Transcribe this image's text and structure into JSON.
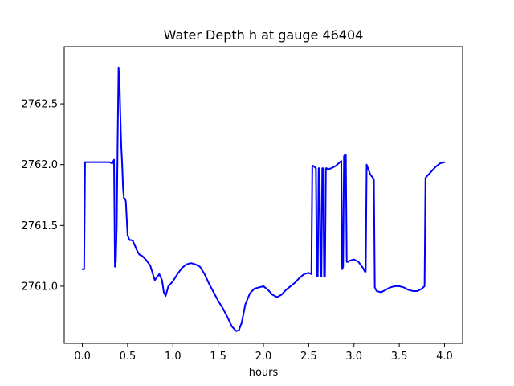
{
  "chart_data": {
    "type": "line",
    "title": "Water Depth h at gauge 46404",
    "xlabel": "hours",
    "ylabel": "",
    "xlim": [
      -0.2,
      4.2
    ],
    "ylim": [
      2760.53,
      2762.97
    ],
    "xticks": [
      0.0,
      0.5,
      1.0,
      1.5,
      2.0,
      2.5,
      3.0,
      3.5,
      4.0
    ],
    "xtick_labels": [
      "0.0",
      "0.5",
      "1.0",
      "1.5",
      "2.0",
      "2.5",
      "3.0",
      "3.5",
      "4.0"
    ],
    "yticks": [
      2761.0,
      2761.5,
      2762.0,
      2762.5
    ],
    "ytick_labels": [
      "2761.0",
      "2761.5",
      "2762.0",
      "2762.5"
    ],
    "grid": false,
    "line_color": "#0000ff",
    "series": [
      {
        "x": [
          0.0,
          0.02,
          0.03,
          0.1,
          0.2,
          0.3,
          0.33,
          0.35,
          0.36,
          0.37,
          0.38,
          0.39,
          0.4,
          0.41,
          0.42,
          0.43,
          0.44,
          0.45,
          0.46,
          0.47,
          0.48,
          0.5,
          0.52,
          0.53,
          0.54,
          0.56,
          0.6,
          0.63,
          0.66,
          0.7,
          0.75,
          0.8,
          0.82,
          0.85,
          0.88,
          0.9,
          0.92,
          0.95,
          1.0,
          1.05,
          1.1,
          1.15,
          1.2,
          1.25,
          1.3,
          1.35,
          1.4,
          1.45,
          1.5,
          1.55,
          1.6,
          1.65,
          1.7,
          1.73,
          1.76,
          1.8,
          1.85,
          1.9,
          1.95,
          2.0,
          2.05,
          2.1,
          2.15,
          2.2,
          2.25,
          2.3,
          2.35,
          2.4,
          2.45,
          2.5,
          2.53,
          2.54,
          2.55,
          2.58,
          2.59,
          2.6,
          2.61,
          2.62,
          2.63,
          2.64,
          2.65,
          2.66,
          2.67,
          2.68,
          2.69,
          2.7,
          2.71,
          2.75,
          2.8,
          2.86,
          2.87,
          2.88,
          2.89,
          2.9,
          2.91,
          2.92,
          2.93,
          2.94,
          2.95,
          3.0,
          3.05,
          3.1,
          3.12,
          3.13,
          3.14,
          3.18,
          3.2,
          3.22,
          3.23,
          3.25,
          3.3,
          3.35,
          3.4,
          3.45,
          3.5,
          3.55,
          3.6,
          3.65,
          3.7,
          3.75,
          3.78,
          3.79,
          3.8,
          3.85,
          3.9,
          3.95,
          4.0
        ],
        "y": [
          2761.14,
          2761.14,
          2762.02,
          2762.02,
          2762.02,
          2762.02,
          2762.01,
          2762.04,
          2761.16,
          2761.2,
          2761.5,
          2762.2,
          2762.8,
          2762.7,
          2762.4,
          2762.15,
          2762.0,
          2761.8,
          2761.72,
          2761.72,
          2761.7,
          2761.42,
          2761.38,
          2761.38,
          2761.38,
          2761.37,
          2761.3,
          2761.26,
          2761.25,
          2761.22,
          2761.17,
          2761.05,
          2761.07,
          2761.1,
          2761.05,
          2760.95,
          2760.92,
          2761.0,
          2761.04,
          2761.1,
          2761.15,
          2761.18,
          2761.19,
          2761.18,
          2761.16,
          2761.1,
          2761.02,
          2760.95,
          2760.88,
          2760.82,
          2760.75,
          2760.67,
          2760.63,
          2760.64,
          2760.7,
          2760.85,
          2760.94,
          2760.98,
          2760.99,
          2761.0,
          2760.97,
          2760.93,
          2760.91,
          2760.93,
          2760.97,
          2761.0,
          2761.03,
          2761.07,
          2761.1,
          2761.11,
          2761.1,
          2761.99,
          2761.99,
          2761.97,
          2761.08,
          2761.08,
          2761.97,
          2761.97,
          2761.08,
          2761.08,
          2761.97,
          2761.97,
          2761.08,
          2761.08,
          2761.97,
          2761.97,
          2761.96,
          2761.97,
          2761.99,
          2762.03,
          2761.14,
          2761.16,
          2762.07,
          2762.08,
          2762.08,
          2761.2,
          2761.2,
          2761.2,
          2761.21,
          2761.22,
          2761.2,
          2761.15,
          2761.12,
          2761.12,
          2762.0,
          2761.92,
          2761.9,
          2761.88,
          2760.99,
          2760.96,
          2760.95,
          2760.97,
          2760.99,
          2761.0,
          2761.0,
          2760.99,
          2760.97,
          2760.96,
          2760.96,
          2760.98,
          2761.0,
          2761.89,
          2761.9,
          2761.94,
          2761.98,
          2762.01,
          2762.02
        ]
      }
    ]
  }
}
